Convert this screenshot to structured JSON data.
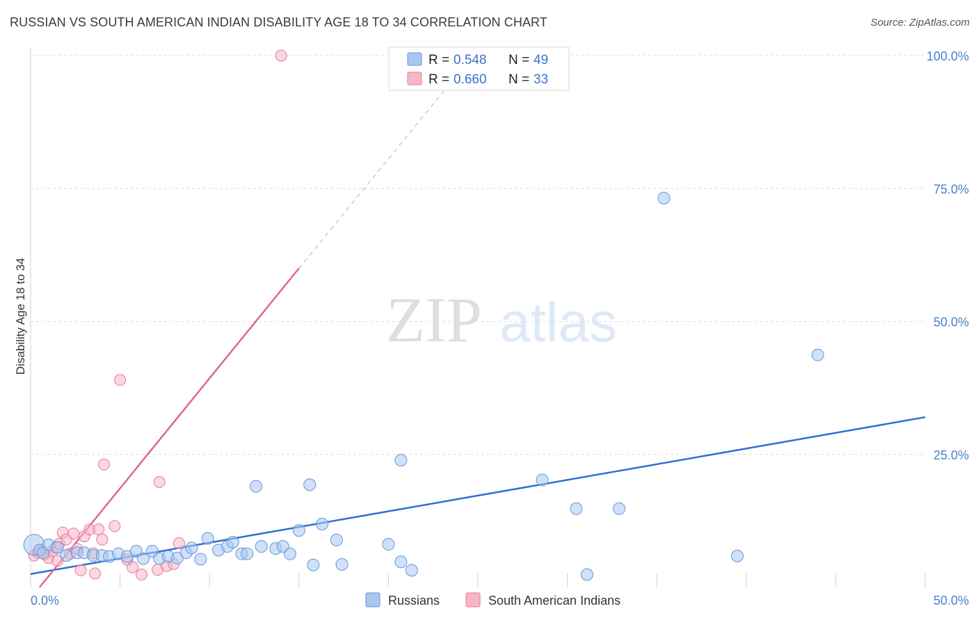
{
  "title": "RUSSIAN VS SOUTH AMERICAN INDIAN DISABILITY AGE 18 TO 34 CORRELATION CHART",
  "source": "Source: ZipAtlas.com",
  "watermark": {
    "zip": "ZIP",
    "atlas": "atlas"
  },
  "colors": {
    "russians_fill": "#a9c8f0",
    "russians_stroke": "#5f95dc",
    "russians_line": "#2f6fd0",
    "sai_fill": "#f7b6c8",
    "sai_stroke": "#e4789a",
    "sai_line": "#e0658c",
    "tick_label": "#4a7fcf",
    "grid": "#dcdcdc"
  },
  "legend": {
    "r_label": "R =",
    "n_label": "N =",
    "rows": [
      {
        "series": "Russians",
        "r": "0.548",
        "n": "49"
      },
      {
        "series": "South American Indians",
        "r": "0.660",
        "n": "33"
      }
    ]
  },
  "bottom_legend": [
    "Russians",
    "South American Indians"
  ],
  "chart_data": {
    "type": "scatter",
    "title": "RUSSIAN VS SOUTH AMERICAN INDIAN DISABILITY AGE 18 TO 34 CORRELATION CHART",
    "xlabel": "",
    "ylabel": "Disability Age 18 to 34",
    "xlim": [
      0,
      50
    ],
    "ylim": [
      0,
      100
    ],
    "x_tick_labels": [
      "0.0%",
      "50.0%"
    ],
    "y_tick_labels": [
      {
        "value": 100,
        "label": "100.0%"
      },
      {
        "value": 75,
        "label": "75.0%"
      },
      {
        "value": 50,
        "label": "50.0%"
      },
      {
        "value": 25,
        "label": "25.0%"
      }
    ],
    "series": [
      {
        "name": "Russians",
        "r": 0.548,
        "n": 49,
        "trendline": {
          "x": [
            0,
            50
          ],
          "y": [
            2.5,
            32.0
          ],
          "style": "solid"
        },
        "points": [
          {
            "x": 0.2,
            "y": 8.0,
            "big": true
          },
          {
            "x": 0.5,
            "y": 7.0
          },
          {
            "x": 0.7,
            "y": 6.5
          },
          {
            "x": 1.0,
            "y": 8.0
          },
          {
            "x": 1.5,
            "y": 7.5
          },
          {
            "x": 2.0,
            "y": 6.0
          },
          {
            "x": 2.6,
            "y": 6.5
          },
          {
            "x": 3.0,
            "y": 6.5
          },
          {
            "x": 3.5,
            "y": 6.0
          },
          {
            "x": 4.0,
            "y": 6.0
          },
          {
            "x": 4.4,
            "y": 5.8
          },
          {
            "x": 4.9,
            "y": 6.3
          },
          {
            "x": 5.4,
            "y": 5.8
          },
          {
            "x": 5.9,
            "y": 6.8
          },
          {
            "x": 6.3,
            "y": 5.4
          },
          {
            "x": 6.8,
            "y": 6.8
          },
          {
            "x": 7.2,
            "y": 5.4
          },
          {
            "x": 7.7,
            "y": 5.8
          },
          {
            "x": 8.2,
            "y": 5.5
          },
          {
            "x": 8.7,
            "y": 6.5
          },
          {
            "x": 9.0,
            "y": 7.4
          },
          {
            "x": 9.5,
            "y": 5.3
          },
          {
            "x": 9.9,
            "y": 9.2
          },
          {
            "x": 10.5,
            "y": 7.0
          },
          {
            "x": 11.0,
            "y": 7.7
          },
          {
            "x": 11.3,
            "y": 8.5
          },
          {
            "x": 11.8,
            "y": 6.3
          },
          {
            "x": 12.1,
            "y": 6.3
          },
          {
            "x": 12.6,
            "y": 19.0
          },
          {
            "x": 12.9,
            "y": 7.7
          },
          {
            "x": 13.7,
            "y": 7.3
          },
          {
            "x": 14.1,
            "y": 7.7
          },
          {
            "x": 14.5,
            "y": 6.3
          },
          {
            "x": 15.0,
            "y": 10.7
          },
          {
            "x": 15.6,
            "y": 19.3
          },
          {
            "x": 15.8,
            "y": 4.2
          },
          {
            "x": 16.3,
            "y": 11.9
          },
          {
            "x": 17.1,
            "y": 8.9
          },
          {
            "x": 17.4,
            "y": 4.3
          },
          {
            "x": 20.0,
            "y": 8.1
          },
          {
            "x": 20.7,
            "y": 23.9
          },
          {
            "x": 20.7,
            "y": 4.8
          },
          {
            "x": 21.3,
            "y": 3.2
          },
          {
            "x": 28.6,
            "y": 20.2
          },
          {
            "x": 30.5,
            "y": 14.8
          },
          {
            "x": 31.1,
            "y": 2.4
          },
          {
            "x": 32.9,
            "y": 14.8
          },
          {
            "x": 35.4,
            "y": 73.2
          },
          {
            "x": 39.5,
            "y": 5.9
          },
          {
            "x": 44.0,
            "y": 43.7
          }
        ]
      },
      {
        "name": "South American Indians",
        "r": 0.66,
        "n": 33,
        "trendline": {
          "x": [
            0.5,
            15.0
          ],
          "y": [
            0.0,
            60.0
          ],
          "style": "solid",
          "extension": {
            "x": [
              15.0,
              23.5
            ],
            "y": [
              60.0,
              95.0
            ],
            "style": "dashed"
          }
        },
        "points": [
          {
            "x": 0.2,
            "y": 6.0
          },
          {
            "x": 0.4,
            "y": 6.5
          },
          {
            "x": 0.6,
            "y": 7.0
          },
          {
            "x": 0.8,
            "y": 6.2
          },
          {
            "x": 1.0,
            "y": 5.5
          },
          {
            "x": 1.2,
            "y": 6.8
          },
          {
            "x": 1.4,
            "y": 7.5
          },
          {
            "x": 1.5,
            "y": 5.0
          },
          {
            "x": 1.6,
            "y": 8.2
          },
          {
            "x": 1.8,
            "y": 10.3
          },
          {
            "x": 2.0,
            "y": 9.0
          },
          {
            "x": 2.2,
            "y": 6.3
          },
          {
            "x": 2.4,
            "y": 10.1
          },
          {
            "x": 2.6,
            "y": 7.2
          },
          {
            "x": 2.8,
            "y": 3.2
          },
          {
            "x": 3.0,
            "y": 9.6
          },
          {
            "x": 3.3,
            "y": 10.9
          },
          {
            "x": 3.5,
            "y": 6.4
          },
          {
            "x": 3.6,
            "y": 2.6
          },
          {
            "x": 3.8,
            "y": 10.9
          },
          {
            "x": 4.0,
            "y": 9.0
          },
          {
            "x": 4.1,
            "y": 23.1
          },
          {
            "x": 4.7,
            "y": 11.5
          },
          {
            "x": 5.0,
            "y": 39.0
          },
          {
            "x": 5.7,
            "y": 3.8
          },
          {
            "x": 6.2,
            "y": 2.4
          },
          {
            "x": 7.1,
            "y": 3.3
          },
          {
            "x": 7.2,
            "y": 19.8
          },
          {
            "x": 7.6,
            "y": 4.0
          },
          {
            "x": 8.0,
            "y": 4.4
          },
          {
            "x": 8.3,
            "y": 8.3
          },
          {
            "x": 5.4,
            "y": 5.2
          },
          {
            "x": 14.0,
            "y": 100.0
          }
        ]
      }
    ]
  }
}
